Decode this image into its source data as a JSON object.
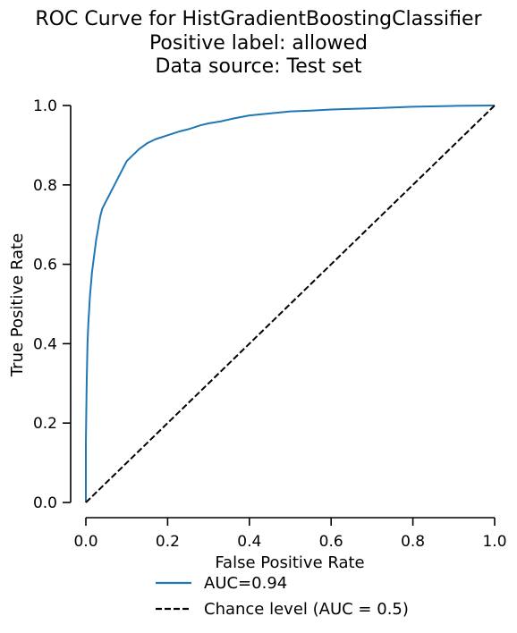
{
  "chart_data": {
    "type": "line",
    "title": [
      "ROC Curve for HistGradientBoostingClassifier",
      "Positive label: allowed",
      "Data source: Test set"
    ],
    "xlabel": "False Positive Rate",
    "ylabel": "True Positive Rate",
    "xlim": [
      0.0,
      1.0
    ],
    "ylim": [
      0.0,
      1.0
    ],
    "xticks": [
      "0.0",
      "0.2",
      "0.4",
      "0.6",
      "0.8",
      "1.0"
    ],
    "yticks": [
      "0.0",
      "0.2",
      "0.4",
      "0.6",
      "0.8",
      "1.0"
    ],
    "grid": false,
    "legend_position": "below",
    "series": [
      {
        "name": "AUC=0.94",
        "color": "#1f77b4",
        "style": "solid",
        "x": [
          0.0,
          0.0,
          0.002,
          0.004,
          0.006,
          0.01,
          0.015,
          0.02,
          0.025,
          0.03,
          0.035,
          0.04,
          0.045,
          0.05,
          0.055,
          0.06,
          0.07,
          0.08,
          0.09,
          0.1,
          0.11,
          0.12,
          0.13,
          0.15,
          0.17,
          0.2,
          0.23,
          0.25,
          0.28,
          0.3,
          0.33,
          0.36,
          0.4,
          0.45,
          0.5,
          0.55,
          0.6,
          0.7,
          0.8,
          0.9,
          1.0
        ],
        "y": [
          0.0,
          0.15,
          0.3,
          0.4,
          0.45,
          0.52,
          0.58,
          0.62,
          0.66,
          0.69,
          0.72,
          0.74,
          0.75,
          0.76,
          0.77,
          0.78,
          0.8,
          0.82,
          0.84,
          0.86,
          0.87,
          0.88,
          0.89,
          0.905,
          0.915,
          0.925,
          0.935,
          0.94,
          0.95,
          0.955,
          0.96,
          0.967,
          0.975,
          0.98,
          0.985,
          0.987,
          0.99,
          0.993,
          0.997,
          0.999,
          1.0
        ]
      },
      {
        "name": "Chance level (AUC = 0.5)",
        "color": "#000000",
        "style": "dashed",
        "x": [
          0.0,
          1.0
        ],
        "y": [
          0.0,
          1.0
        ]
      }
    ]
  }
}
